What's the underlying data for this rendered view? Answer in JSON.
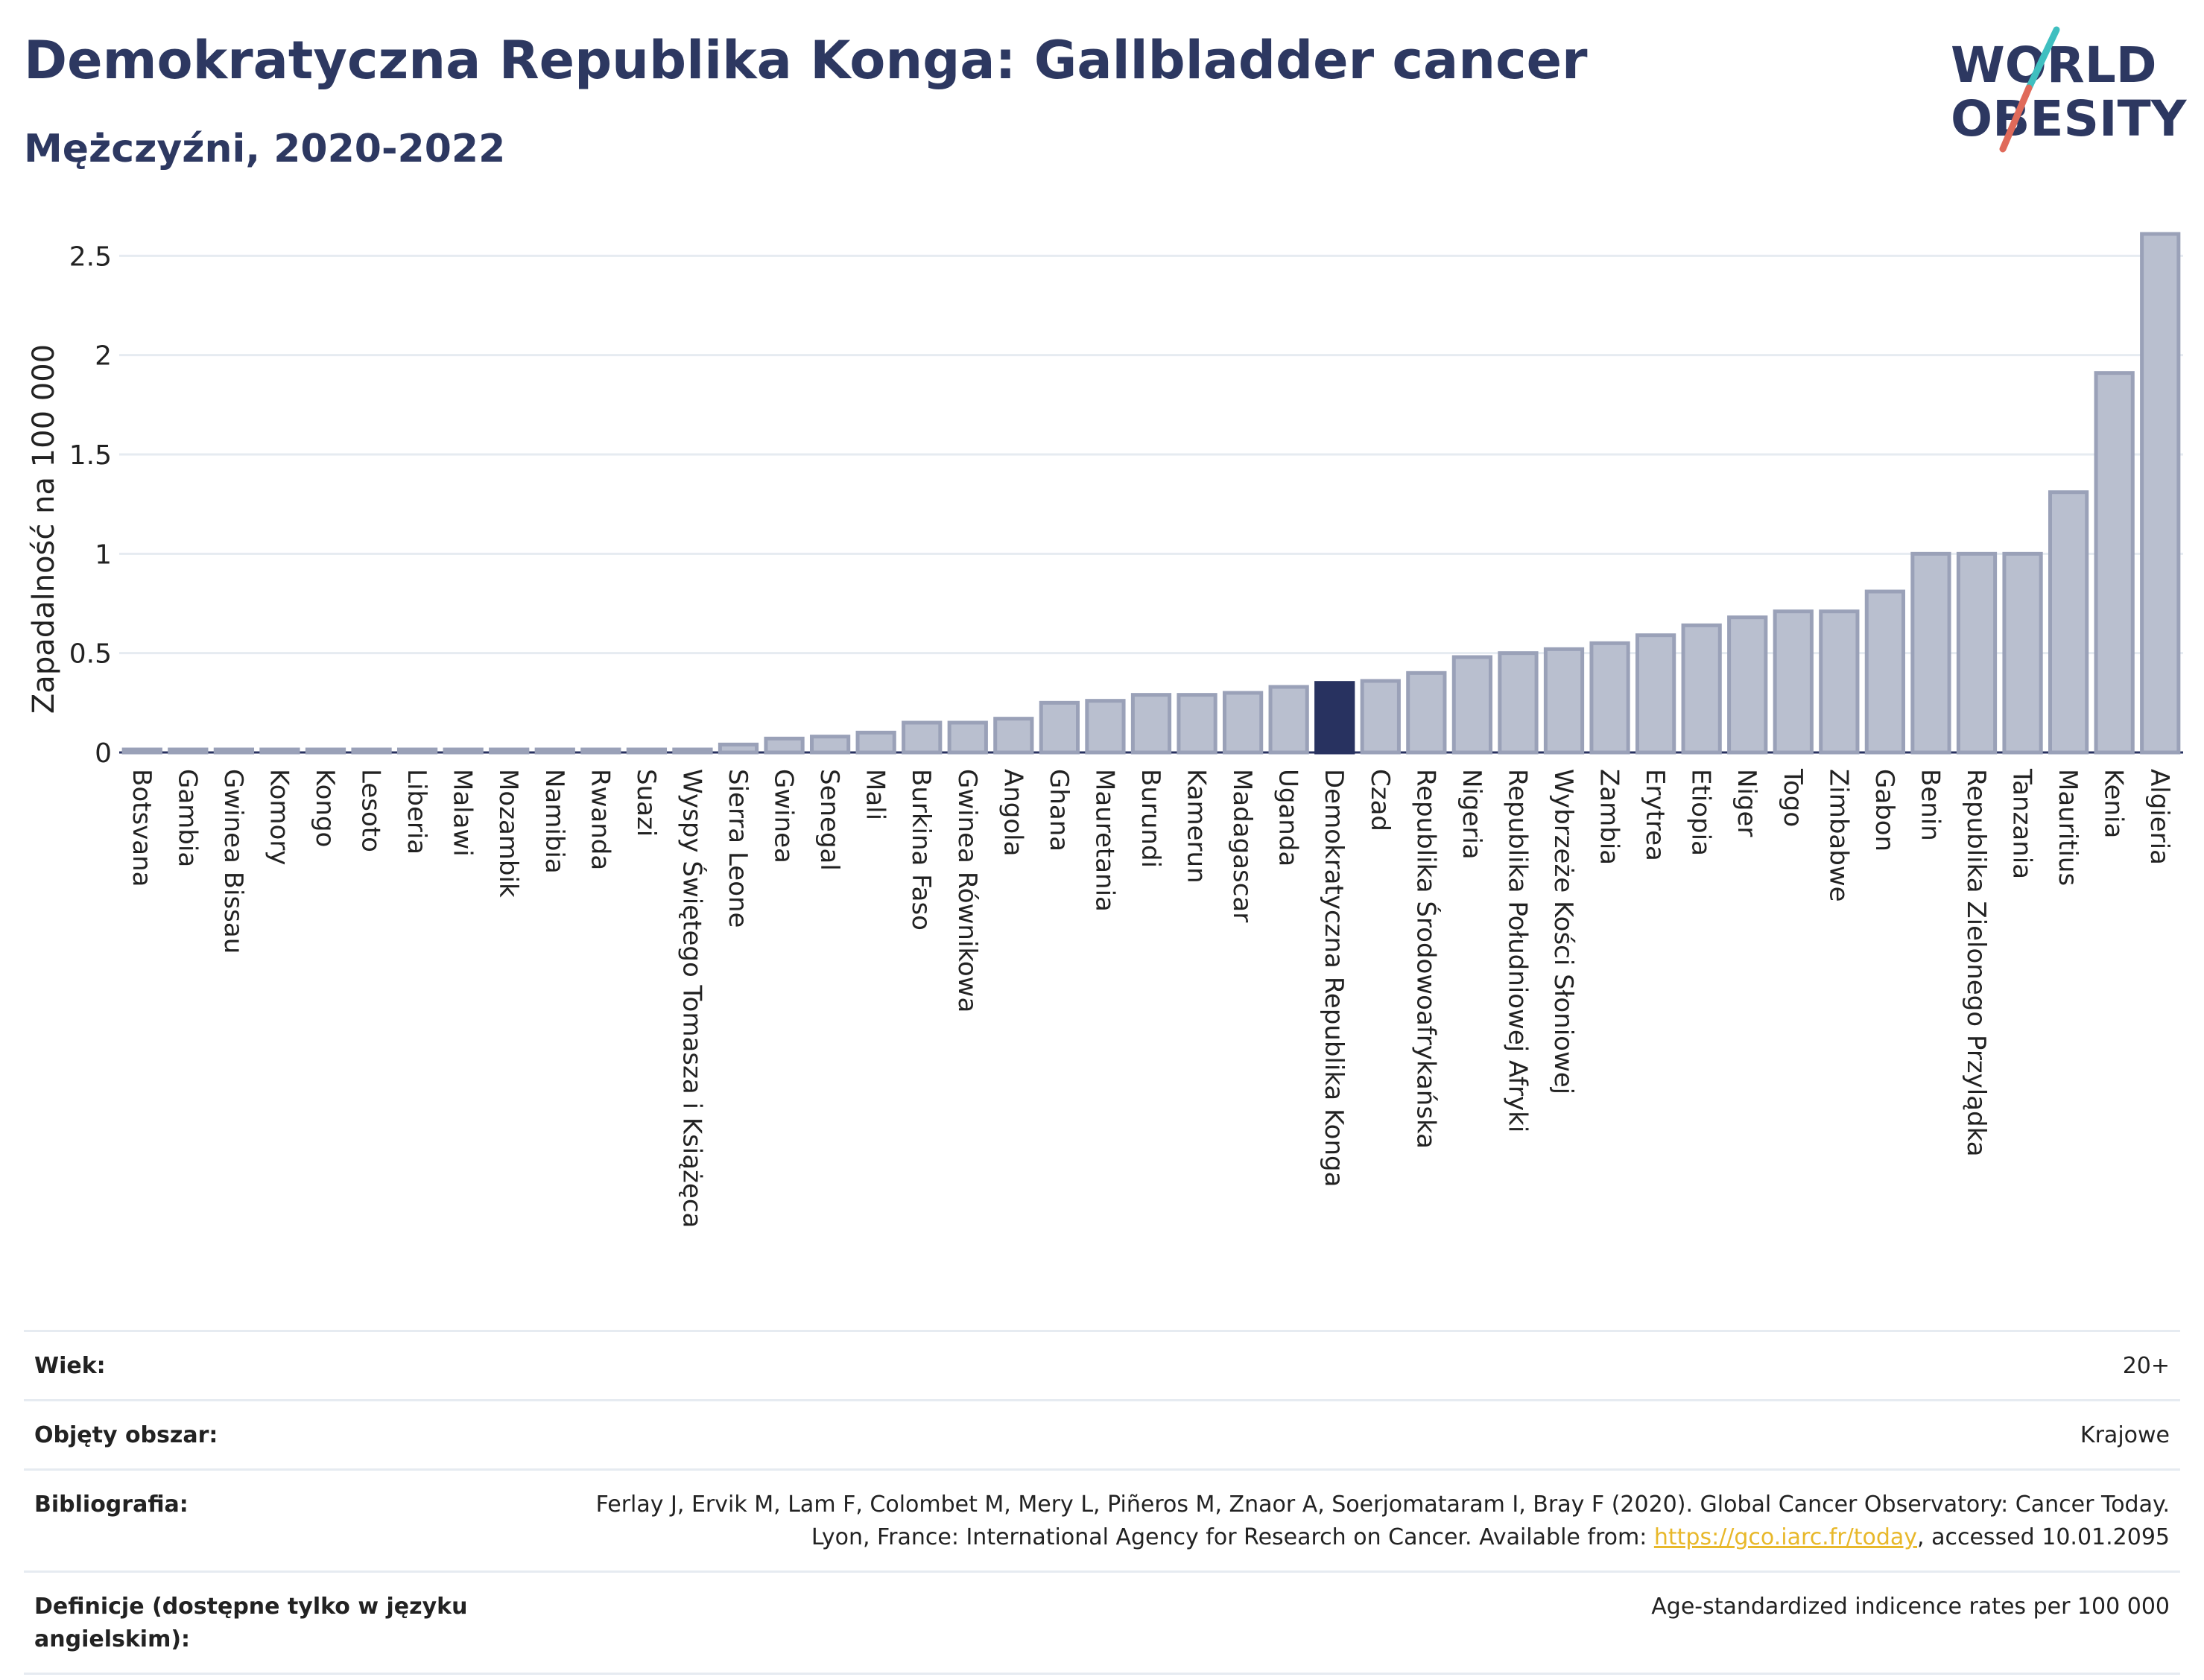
{
  "header": {
    "title": "Demokratyczna Republika Konga: Gallbladder cancer",
    "subtitle": "Mężczyźni, 2020-2022"
  },
  "logo": {
    "line1": "WORLD",
    "line2": "OBESITY",
    "accent_teal": "#3fbfc0",
    "accent_red": "#e06a5a"
  },
  "colors": {
    "bar": "#b9bfcf",
    "bar_edge": "#9aa1b8",
    "highlight": "#283260",
    "grid": "#e6ebf1"
  },
  "chart_data": {
    "type": "bar",
    "ylabel": "Zapadalność na 100 000",
    "ylim": [
      0,
      2.7
    ],
    "yticks": [
      0,
      0.5,
      1,
      1.5,
      2,
      2.5
    ],
    "ytick_labels": [
      "0",
      "0.5",
      "1",
      "1.5",
      "2",
      "2.5"
    ],
    "highlight": "Demokratyczna Republika Konga",
    "categories": [
      "Botsvana",
      "Gambia",
      "Gwinea Bissau",
      "Komory",
      "Kongo",
      "Lesoto",
      "Liberia",
      "Malawi",
      "Mozambik",
      "Namibia",
      "Rwanda",
      "Suazi",
      "Wyspy Świętego Tomasza i Książęca",
      "Sierra Leone",
      "Gwinea",
      "Senegal",
      "Mali",
      "Burkina Faso",
      "Gwinea Równikowa",
      "Angola",
      "Ghana",
      "Mauretania",
      "Burundi",
      "Kamerun",
      "Madagascar",
      "Uganda",
      "Demokratyczna Republika Konga",
      "Czad",
      "Republika Środowoafrykańska",
      "Nigeria",
      "Republika Południowej Afryki",
      "Wybrzeże Kości Słoniowej",
      "Zambia",
      "Erytrea",
      "Etiopia",
      "Niger",
      "Togo",
      "Zimbabwe",
      "Gabon",
      "Benin",
      "Republika Zielonego Przylądka",
      "Tanzania",
      "Mauritius",
      "Kenia",
      "Algieria"
    ],
    "values": [
      0.01,
      0.01,
      0.01,
      0.01,
      0.01,
      0.01,
      0.01,
      0.01,
      0.01,
      0.01,
      0.01,
      0.01,
      0.01,
      0.04,
      0.07,
      0.08,
      0.1,
      0.15,
      0.15,
      0.17,
      0.25,
      0.26,
      0.29,
      0.29,
      0.3,
      0.33,
      0.35,
      0.36,
      0.4,
      0.48,
      0.5,
      0.52,
      0.55,
      0.59,
      0.64,
      0.68,
      0.71,
      0.71,
      0.81,
      1.0,
      1.0,
      1.0,
      1.31,
      1.91,
      2.61
    ]
  },
  "info": [
    {
      "label": "Wiek:",
      "value": "20+"
    },
    {
      "label": "Objęty obszar:",
      "value": "Krajowe"
    },
    {
      "label": "Bibliografia:",
      "value_before": "Ferlay J, Ervik M, Lam F, Colombet M, Mery L, Piñeros M, Znaor A, Soerjomataram I, Bray F (2020). Global Cancer Observatory: Cancer Today. Lyon, France: International Agency for Research on Cancer. Available from: ",
      "link": "https://gco.iarc.fr/today",
      "value_after": ", accessed 10.01.2095"
    },
    {
      "label": "Definicje (dostępne tylko w języku angielskim):",
      "value": "Age-standardized indicence rates per 100 000"
    }
  ]
}
